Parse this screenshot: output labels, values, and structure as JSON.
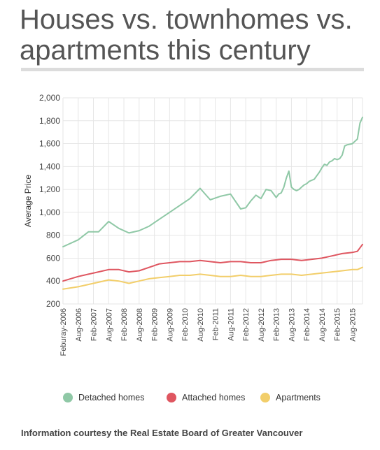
{
  "title": "Houses vs. townhomes vs. apartments this century",
  "footer": "Information courtesy the Real Estate Board of Greater Vancouver",
  "colors": {
    "detached": "#8fc8a6",
    "attached": "#df5660",
    "apartments": "#f2ce6a",
    "grid": "#e6e6e6"
  },
  "chart_data": {
    "type": "line",
    "title": "",
    "xlabel": "",
    "ylabel": "Average Price",
    "ylim": [
      200,
      2000
    ],
    "yticks": [
      "200",
      "400",
      "600",
      "800",
      "1,000",
      "1,200",
      "1,400",
      "1,600",
      "1,800",
      "2,000"
    ],
    "xticks": [
      "Feburay-2006",
      "Aug-2006",
      "Feb-2007",
      "Aug-2007",
      "Feb-2008",
      "Aug-2008",
      "Feb-2009",
      "Aug-2009",
      "Feb-2010",
      "Aug-2010",
      "Feb-2011",
      "Aug-2011",
      "Feb-2012",
      "Aug-2012",
      "Feb-2013",
      "Aug-2013",
      "Feb-2014",
      "Aug-2014",
      "Feb-2015",
      "Aug-2015"
    ],
    "grid": true,
    "legend": "bottom",
    "series": [
      {
        "name": "Detached homes",
        "key": "detached",
        "x": [
          0,
          6,
          10,
          14,
          18,
          22,
          26,
          30,
          34,
          38,
          42,
          46,
          50,
          54,
          58,
          62,
          66,
          70,
          72,
          74,
          76,
          78,
          80,
          82,
          84,
          85,
          86,
          87,
          88,
          89,
          90,
          91,
          92,
          93,
          94,
          95,
          96,
          97,
          98,
          99,
          100,
          101,
          102,
          103,
          104,
          105,
          106,
          107,
          108,
          109,
          110,
          111,
          112,
          114,
          116,
          117,
          118
        ],
        "values": [
          700,
          760,
          830,
          830,
          920,
          860,
          820,
          840,
          880,
          940,
          1000,
          1060,
          1120,
          1210,
          1110,
          1140,
          1160,
          1030,
          1040,
          1100,
          1150,
          1120,
          1200,
          1190,
          1130,
          1160,
          1170,
          1220,
          1300,
          1360,
          1220,
          1200,
          1190,
          1200,
          1220,
          1240,
          1250,
          1270,
          1280,
          1290,
          1320,
          1350,
          1390,
          1420,
          1410,
          1440,
          1450,
          1470,
          1460,
          1470,
          1500,
          1580,
          1590,
          1600,
          1640,
          1780,
          1830
        ]
      },
      {
        "name": "Attached homes",
        "key": "attached",
        "x": [
          0,
          6,
          10,
          14,
          18,
          22,
          26,
          30,
          34,
          38,
          42,
          46,
          50,
          54,
          58,
          62,
          66,
          70,
          74,
          78,
          82,
          86,
          90,
          94,
          98,
          102,
          106,
          110,
          114,
          116,
          117,
          118
        ],
        "values": [
          400,
          440,
          460,
          480,
          500,
          500,
          480,
          490,
          520,
          550,
          560,
          570,
          570,
          580,
          570,
          560,
          570,
          570,
          560,
          560,
          580,
          590,
          590,
          580,
          590,
          600,
          620,
          640,
          650,
          660,
          690,
          720
        ]
      },
      {
        "name": "Apartments",
        "key": "apartments",
        "x": [
          0,
          6,
          10,
          14,
          18,
          22,
          26,
          30,
          34,
          38,
          42,
          46,
          50,
          54,
          58,
          62,
          66,
          70,
          74,
          78,
          82,
          86,
          90,
          94,
          98,
          102,
          106,
          110,
          114,
          116,
          117,
          118
        ],
        "values": [
          330,
          350,
          370,
          390,
          410,
          400,
          380,
          400,
          420,
          430,
          440,
          450,
          450,
          460,
          450,
          440,
          440,
          450,
          440,
          440,
          450,
          460,
          460,
          450,
          460,
          470,
          480,
          490,
          500,
          500,
          510,
          520
        ]
      }
    ]
  }
}
